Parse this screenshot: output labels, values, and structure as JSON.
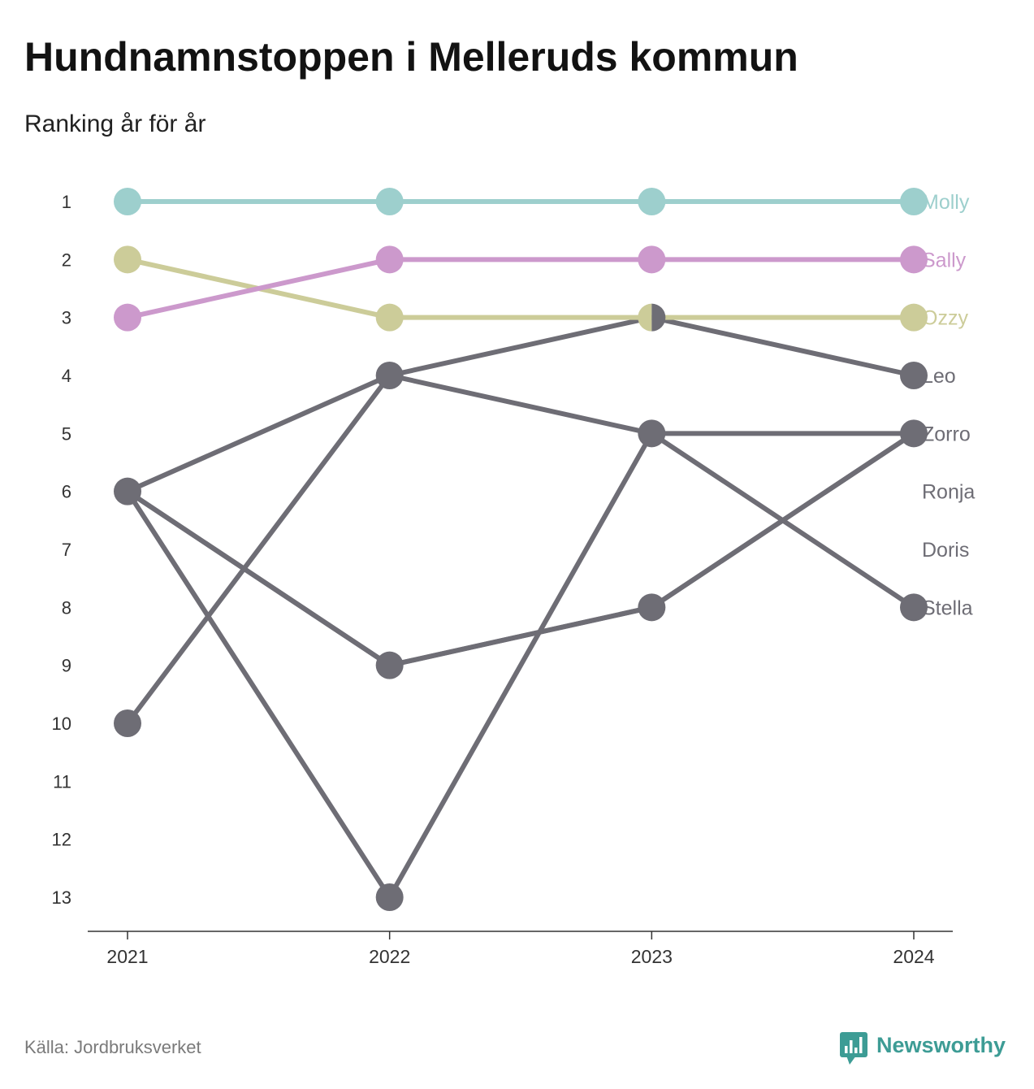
{
  "source": "Källa: Jordbruksverket",
  "brand": {
    "name": "Newsworthy",
    "icon": "newsworthy-logo-icon",
    "color": "#3d9c95"
  },
  "chart_data": {
    "type": "line",
    "variant": "bump",
    "title": "Hundnamnstoppen i Melleruds kommun",
    "subtitle": "Ranking år för år",
    "x": [
      "2021",
      "2022",
      "2023",
      "2024"
    ],
    "y_ticks": [
      1,
      2,
      3,
      4,
      5,
      6,
      7,
      8,
      9,
      10,
      11,
      12,
      13
    ],
    "ylim": [
      1,
      13
    ],
    "y_reversed": true,
    "grid": false,
    "legend": "right",
    "series": [
      {
        "name": "Molly",
        "color": "#9dcfcd",
        "values": [
          1,
          1,
          1,
          1
        ]
      },
      {
        "name": "Sally",
        "color": "#cc99cc",
        "values": [
          3,
          2,
          2,
          2
        ]
      },
      {
        "name": "Ozzy",
        "color": "#cccc99",
        "values": [
          2,
          3,
          3,
          3
        ]
      },
      {
        "name": "Leo",
        "color": "#6e6d75",
        "values": [
          10,
          4,
          3,
          4
        ]
      },
      {
        "name": "Zorro",
        "color": "#6e6d75",
        "values": [
          6,
          13,
          5,
          5
        ]
      },
      {
        "name": "Ronja",
        "color": "#6e6d75",
        "values": [
          6,
          9,
          8,
          5
        ]
      },
      {
        "name": "Doris",
        "color": "#6e6d75",
        "values": [
          6,
          9,
          8,
          5
        ]
      },
      {
        "name": "Stella",
        "color": "#6e6d75",
        "values": [
          6,
          4,
          5,
          8
        ]
      }
    ]
  }
}
